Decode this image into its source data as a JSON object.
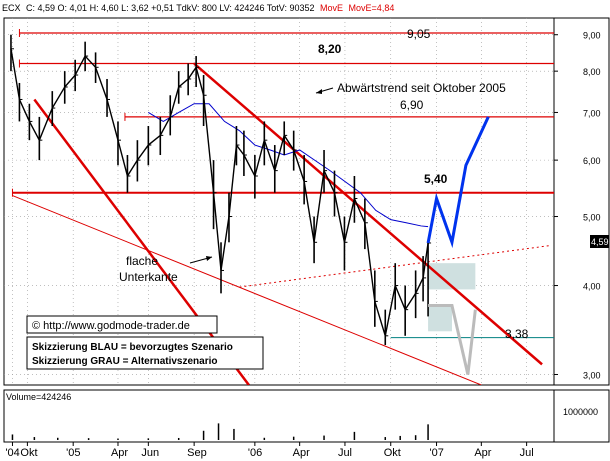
{
  "header": {
    "symbol": "ECX",
    "quote": "C: 4,59  O: 4,01  H: 4,60  L: 3,62  +0,51  TdkV: 800  LV: 424246  TotV: 90352",
    "ma_label": "MovE",
    "ma_value": "MovE=4,84"
  },
  "annotations": {
    "level_905": "9,05",
    "level_820": "8,20",
    "level_690": "6,90",
    "level_540": "5,40",
    "level_338": "3,38",
    "downtrend": "Abwärtstrend seit Oktober 2005",
    "flat_line_1": "flache",
    "flat_line_2": "Unterkante",
    "copyright": "© http://www.godmode-trader.de",
    "legend_blue": "Skizzierung BLAU = bevorzugtes Szenario",
    "legend_gray": "Skizzierung GRAU = Alternativszenario"
  },
  "volume_panel": {
    "label": "Volume=424246",
    "tick": "1000000"
  },
  "price_tag": "4,59",
  "chart_data": {
    "type": "line",
    "title": "",
    "price_scale": "log",
    "ylim": [
      2.9,
      9.5
    ],
    "y_ticks": [
      "9,00",
      "8,00",
      "7,00",
      "6,00",
      "5,00",
      "4,00",
      "3,00"
    ],
    "y_tick_values": [
      9,
      8,
      7,
      6,
      5,
      4,
      3
    ],
    "x_ticks": [
      {
        "label": "'04",
        "date": "2004-09-01"
      },
      {
        "label": "Okt",
        "date": "2004-10-01"
      },
      {
        "label": "'05",
        "date": "2005-01-01"
      },
      {
        "label": "Apr",
        "date": "2005-04-01"
      },
      {
        "label": "Jun",
        "date": "2005-06-01"
      },
      {
        "label": "Sep",
        "date": "2005-09-01"
      },
      {
        "label": "'06",
        "date": "2006-01-01"
      },
      {
        "label": "Apr",
        "date": "2006-04-01"
      },
      {
        "label": "Jul",
        "date": "2006-07-01"
      },
      {
        "label": "Okt",
        "date": "2006-10-01"
      },
      {
        "label": "'07",
        "date": "2007-01-01"
      },
      {
        "label": "Apr",
        "date": "2007-04-01"
      },
      {
        "label": "Jul",
        "date": "2007-07-01"
      }
    ],
    "xlim": [
      "2004-08-15",
      "2007-08-25"
    ],
    "series": [
      {
        "kind": "ohlc",
        "color": "#000000",
        "x": [
          "2004-08-29",
          "2004-09-15",
          "2004-10-05",
          "2004-10-25",
          "2004-11-20",
          "2004-12-15",
          "2005-01-05",
          "2005-01-25",
          "2005-02-15",
          "2005-03-10",
          "2005-04-01",
          "2005-04-20",
          "2005-05-10",
          "2005-06-01",
          "2005-06-25",
          "2005-07-15",
          "2005-08-01",
          "2005-08-20",
          "2005-09-05",
          "2005-09-20",
          "2005-10-10",
          "2005-10-25",
          "2005-11-10",
          "2005-11-25",
          "2005-12-10",
          "2006-01-01",
          "2006-01-20",
          "2006-02-10",
          "2006-03-01",
          "2006-03-20",
          "2006-04-10",
          "2006-04-30",
          "2006-05-20",
          "2006-06-10",
          "2006-06-30",
          "2006-07-20",
          "2006-08-10",
          "2006-08-30",
          "2006-09-20",
          "2006-10-10",
          "2006-10-30",
          "2006-11-20",
          "2006-12-05",
          "2006-12-15"
        ],
        "close": [
          8.6,
          7.3,
          6.8,
          6.4,
          7.1,
          7.6,
          7.9,
          8.4,
          8.1,
          7.3,
          6.4,
          5.7,
          6.0,
          6.3,
          6.5,
          6.9,
          7.6,
          7.8,
          8.1,
          7.4,
          5.4,
          4.2,
          5.0,
          6.3,
          6.1,
          5.7,
          6.4,
          5.8,
          6.5,
          6.2,
          5.6,
          4.6,
          5.8,
          5.4,
          4.6,
          5.3,
          4.9,
          3.8,
          3.4,
          4.0,
          3.7,
          3.9,
          4.1,
          4.59
        ],
        "high": [
          9.0,
          7.7,
          7.2,
          6.9,
          7.5,
          8.0,
          8.3,
          8.8,
          8.5,
          7.8,
          6.8,
          6.1,
          6.4,
          6.7,
          6.9,
          7.4,
          8.0,
          8.2,
          8.4,
          7.9,
          6.0,
          4.6,
          5.4,
          6.7,
          6.6,
          6.1,
          6.8,
          6.3,
          6.8,
          6.6,
          6.1,
          5.0,
          6.2,
          5.8,
          5.0,
          5.7,
          5.3,
          4.2,
          3.7,
          4.3,
          4.0,
          4.2,
          4.4,
          4.6
        ],
        "low": [
          8.0,
          6.8,
          6.4,
          6.0,
          6.7,
          7.2,
          7.5,
          8.0,
          7.7,
          6.9,
          5.9,
          5.4,
          5.6,
          5.9,
          6.1,
          6.5,
          7.2,
          7.4,
          7.6,
          6.7,
          4.8,
          3.9,
          4.6,
          5.9,
          5.7,
          5.3,
          5.9,
          5.4,
          6.1,
          5.8,
          5.2,
          4.3,
          5.4,
          5.0,
          4.2,
          4.9,
          4.5,
          3.5,
          3.3,
          3.7,
          3.4,
          3.6,
          3.8,
          3.62
        ]
      },
      {
        "kind": "moving_average",
        "color": "#0000cc",
        "x": [
          "2005-06-01",
          "2005-07-01",
          "2005-08-01",
          "2005-09-01",
          "2005-10-01",
          "2005-11-01",
          "2005-12-01",
          "2006-01-01",
          "2006-02-01",
          "2006-03-01",
          "2006-04-01",
          "2006-05-01",
          "2006-06-01",
          "2006-07-01",
          "2006-08-01",
          "2006-09-01",
          "2006-10-01",
          "2006-11-01",
          "2006-12-01",
          "2006-12-15"
        ],
        "y": [
          7.0,
          6.8,
          7.0,
          7.2,
          7.2,
          6.8,
          6.6,
          6.3,
          6.2,
          6.1,
          6.2,
          6.0,
          5.8,
          5.6,
          5.4,
          5.1,
          4.95,
          4.9,
          4.85,
          4.84
        ]
      }
    ],
    "horizontal_levels": [
      9.05,
      8.2,
      6.9,
      5.4,
      3.38
    ],
    "trendlines": [
      {
        "name": "downtrend",
        "from": {
          "x": "2005-09-01",
          "y": 8.2
        },
        "to": {
          "x": "2007-08-01",
          "y": 3.1
        }
      },
      {
        "name": "parallel",
        "from": {
          "x": "2004-10-15",
          "y": 7.3
        },
        "to": {
          "x": "2005-12-20",
          "y": 2.9
        }
      },
      {
        "name": "flat_bottom",
        "from": {
          "x": "2004-09-01",
          "y": 5.35
        },
        "to": {
          "x": "2007-04-01",
          "y": 2.9
        }
      },
      {
        "name": "dotted_support",
        "from": {
          "x": "2005-12-01",
          "y": 3.98
        },
        "to": {
          "x": "2007-08-15",
          "y": 4.55
        }
      }
    ],
    "scenario_blue": {
      "x": [
        "2006-12-15",
        "2007-01-01",
        "2007-02-01",
        "2007-03-01",
        "2007-04-15"
      ],
      "y": [
        4.59,
        5.3,
        4.6,
        5.9,
        6.9
      ]
    },
    "scenario_gray": {
      "x": [
        "2006-12-15",
        "2007-02-01",
        "2007-03-05",
        "2007-03-20"
      ],
      "y": [
        3.75,
        3.75,
        3.0,
        3.7
      ]
    },
    "volume": {
      "color": "#000000",
      "x": [
        "2004-09-01",
        "2004-10-15",
        "2004-12-01",
        "2005-02-01",
        "2005-04-01",
        "2005-06-01",
        "2005-08-01",
        "2005-09-20",
        "2005-10-20",
        "2005-11-20",
        "2006-01-20",
        "2006-03-20",
        "2006-05-20",
        "2006-07-20",
        "2006-09-20",
        "2006-10-20",
        "2006-11-20",
        "2006-12-15"
      ],
      "values": [
        150000,
        80000,
        60000,
        50000,
        40000,
        45000,
        55000,
        250000,
        450000,
        300000,
        60000,
        90000,
        120000,
        220000,
        80000,
        110000,
        130000,
        424246
      ]
    },
    "volume_ylim": [
      0,
      1300000
    ]
  },
  "colors": {
    "levels": "#dd0000",
    "scenario_blue": "#0033ee",
    "scenario_gray": "#bbbbbb",
    "fill_box": "#cfe0e0",
    "ma": "#0000cc",
    "price": "#000000"
  }
}
